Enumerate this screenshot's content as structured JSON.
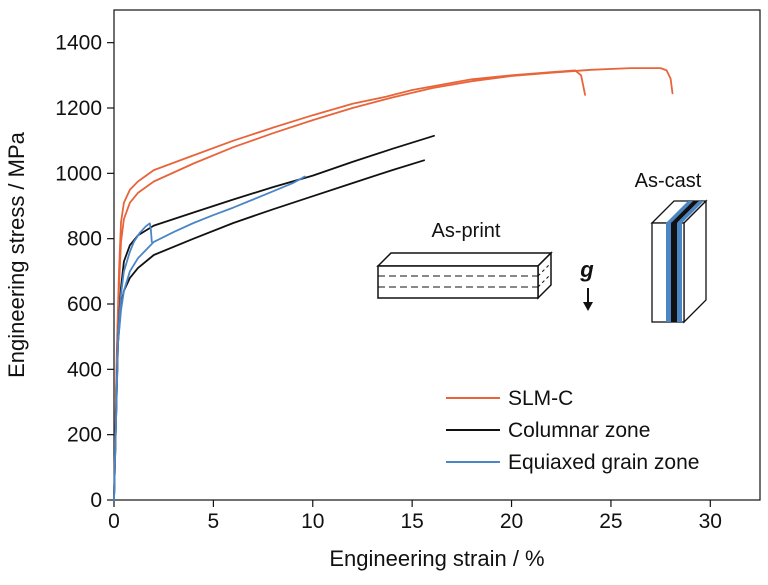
{
  "chart_data": {
    "type": "line",
    "xlabel": "Engineering strain / %",
    "ylabel": "Engineering stress / MPa",
    "xlim": [
      0,
      32.5
    ],
    "ylim": [
      0,
      1500
    ],
    "xticks": [
      0,
      5,
      10,
      15,
      20,
      25,
      30
    ],
    "yticks": [
      0,
      200,
      400,
      600,
      800,
      1000,
      1200,
      1400
    ],
    "grid": false,
    "legend_position": "bottom-right",
    "series": [
      {
        "name": "SLM-C",
        "color": "#e8643a",
        "x": [
          0,
          0.15,
          0.25,
          0.35,
          0.5,
          0.8,
          1.2,
          2,
          4,
          6,
          8,
          10,
          12,
          13.5,
          13.7,
          15,
          18,
          20,
          22,
          23.2,
          23.5,
          23.7
        ],
        "y": [
          0,
          480,
          700,
          850,
          910,
          950,
          975,
          1010,
          1055,
          1100,
          1140,
          1178,
          1213,
          1232,
          1235,
          1255,
          1288,
          1300,
          1310,
          1315,
          1300,
          1240
        ]
      },
      {
        "name": "SLM-C",
        "color": "#e8643a",
        "x": [
          0,
          0.15,
          0.25,
          0.35,
          0.5,
          0.8,
          1.2,
          2,
          4,
          6,
          8,
          10,
          12,
          14,
          16,
          18,
          20,
          22,
          24,
          26,
          27.5,
          27.8,
          28.0,
          28.1
        ],
        "y": [
          0,
          450,
          650,
          790,
          860,
          910,
          940,
          975,
          1030,
          1080,
          1123,
          1163,
          1200,
          1232,
          1261,
          1282,
          1298,
          1308,
          1317,
          1322,
          1322,
          1315,
          1290,
          1245
        ]
      },
      {
        "name": "Columnar zone",
        "color": "#111111",
        "x": [
          0,
          0.2,
          0.35,
          0.5,
          0.8,
          1.2,
          2,
          4,
          6,
          8,
          10,
          12,
          14,
          16.1
        ],
        "y": [
          0,
          500,
          650,
          730,
          780,
          810,
          840,
          880,
          920,
          958,
          993,
          1035,
          1075,
          1115
        ]
      },
      {
        "name": "Columnar zone",
        "color": "#111111",
        "x": [
          0,
          0.2,
          0.35,
          0.5,
          0.8,
          1.2,
          2,
          4,
          6,
          8,
          10,
          12,
          14,
          15.6
        ],
        "y": [
          0,
          480,
          600,
          640,
          680,
          710,
          750,
          800,
          848,
          890,
          930,
          970,
          1010,
          1040
        ]
      },
      {
        "name": "Equiaxed grain zone",
        "color": "#4a86c5",
        "x": [
          0,
          0.2,
          0.35,
          0.5,
          0.8,
          1.0,
          1.3,
          1.6,
          1.8,
          1.85,
          1.9
        ],
        "y": [
          0,
          500,
          630,
          700,
          760,
          790,
          818,
          838,
          847,
          830,
          790
        ]
      },
      {
        "name": "Equiaxed grain zone",
        "color": "#4a86c5",
        "x": [
          0,
          0.2,
          0.35,
          0.5,
          0.8,
          1.2,
          2,
          3,
          4,
          5,
          6,
          7,
          8,
          9,
          9.6
        ],
        "y": [
          0,
          480,
          580,
          640,
          700,
          740,
          790,
          820,
          848,
          872,
          895,
          920,
          945,
          970,
          990
        ]
      }
    ],
    "legend": [
      {
        "label": "SLM-C",
        "color": "#e8643a"
      },
      {
        "label": "Columnar zone",
        "color": "#111111"
      },
      {
        "label": "Equiaxed grain zone",
        "color": "#4a86c5"
      }
    ],
    "annotations": {
      "as_print_label": "As-print",
      "as_cast_label": "As-cast",
      "gravity_label": "g"
    }
  }
}
